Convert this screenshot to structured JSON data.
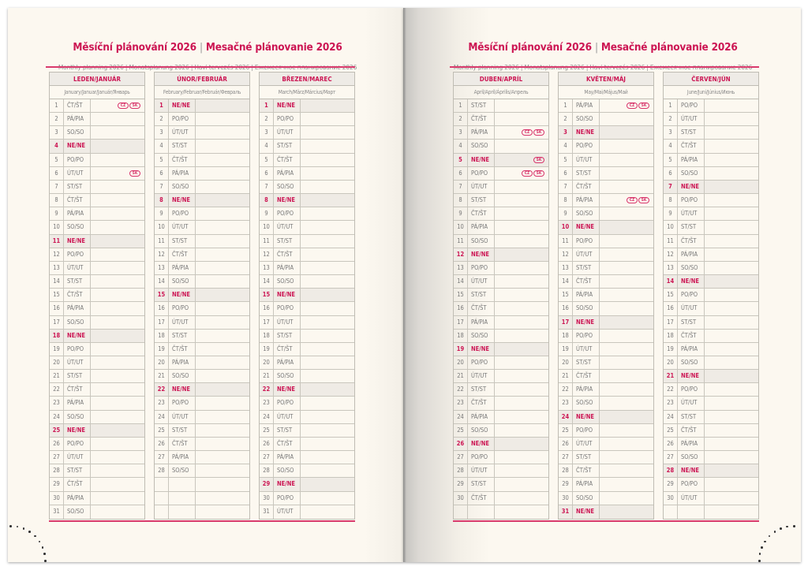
{
  "header": {
    "title_cz": "Měsíční plánování 2026",
    "title_sk": "Mesačné plánovanie 2026",
    "subtitle": "Monthly planning 2026 | Monatsplanung 2026 | Havi tervezés 2026 | Ежемесячное планирование 2026"
  },
  "colors": {
    "accent": "#cc1553",
    "paper": "#fcf8f0",
    "sunday_fill": "#efebe5",
    "grid": "#bfbcb3"
  },
  "holiday_labels": {
    "cz": "CZ",
    "sk": "SK"
  },
  "months": [
    {
      "name": "LEDEN/JANUÁR",
      "sub": "January/Januar/Január/Январь",
      "days": [
        "ČT/ŠT",
        "PÁ/PIA",
        "SO/SO",
        "NE/NE",
        "PO/PO",
        "ÚT/UT",
        "ST/ST",
        "ČT/ŠT",
        "PÁ/PIA",
        "SO/SO",
        "NE/NE",
        "PO/PO",
        "ÚT/UT",
        "ST/ST",
        "ČT/ŠT",
        "PÁ/PIA",
        "SO/SO",
        "NE/NE",
        "PO/PO",
        "ÚT/UT",
        "ST/ST",
        "ČT/ŠT",
        "PÁ/PIA",
        "SO/SO",
        "NE/NE",
        "PO/PO",
        "ÚT/UT",
        "ST/ST",
        "ČT/ŠT",
        "PÁ/PIA",
        "SO/SO"
      ],
      "holidays": {
        "1": [
          "cz",
          "sk"
        ],
        "6": [
          "sk"
        ]
      }
    },
    {
      "name": "ÚNOR/FEBRUÁR",
      "sub": "February/Februar/Február/Февраль",
      "days": [
        "NE/NE",
        "PO/PO",
        "ÚT/UT",
        "ST/ST",
        "ČT/ŠT",
        "PÁ/PIA",
        "SO/SO",
        "NE/NE",
        "PO/PO",
        "ÚT/UT",
        "ST/ST",
        "ČT/ŠT",
        "PÁ/PIA",
        "SO/SO",
        "NE/NE",
        "PO/PO",
        "ÚT/UT",
        "ST/ST",
        "ČT/ŠT",
        "PÁ/PIA",
        "SO/SO",
        "NE/NE",
        "PO/PO",
        "ÚT/UT",
        "ST/ST",
        "ČT/ŠT",
        "PÁ/PIA",
        "SO/SO"
      ],
      "holidays": {}
    },
    {
      "name": "BŘEZEN/MAREC",
      "sub": "March/März/Március/Март",
      "days": [
        "NE/NE",
        "PO/PO",
        "ÚT/UT",
        "ST/ST",
        "ČT/ŠT",
        "PÁ/PIA",
        "SO/SO",
        "NE/NE",
        "PO/PO",
        "ÚT/UT",
        "ST/ST",
        "ČT/ŠT",
        "PÁ/PIA",
        "SO/SO",
        "NE/NE",
        "PO/PO",
        "ÚT/UT",
        "ST/ST",
        "ČT/ŠT",
        "PÁ/PIA",
        "SO/SO",
        "NE/NE",
        "PO/PO",
        "ÚT/UT",
        "ST/ST",
        "ČT/ŠT",
        "PÁ/PIA",
        "SO/SO",
        "NE/NE",
        "PO/PO",
        "ÚT/UT"
      ],
      "holidays": {}
    },
    {
      "name": "DUBEN/APRÍL",
      "sub": "April/April/Április/Апрель",
      "days": [
        "ST/ST",
        "ČT/ŠT",
        "PÁ/PIA",
        "SO/SO",
        "NE/NE",
        "PO/PO",
        "ÚT/UT",
        "ST/ST",
        "ČT/ŠT",
        "PÁ/PIA",
        "SO/SO",
        "NE/NE",
        "PO/PO",
        "ÚT/UT",
        "ST/ST",
        "ČT/ŠT",
        "PÁ/PIA",
        "SO/SO",
        "NE/NE",
        "PO/PO",
        "ÚT/UT",
        "ST/ST",
        "ČT/ŠT",
        "PÁ/PIA",
        "SO/SO",
        "NE/NE",
        "PO/PO",
        "ÚT/UT",
        "ST/ST",
        "ČT/ŠT"
      ],
      "holidays": {
        "3": [
          "cz",
          "sk"
        ],
        "5": [
          "sk"
        ],
        "6": [
          "cz",
          "sk"
        ]
      }
    },
    {
      "name": "KVĚTEN/MÁJ",
      "sub": "May/Mai/Május/Май",
      "days": [
        "PÁ/PIA",
        "SO/SO",
        "NE/NE",
        "PO/PO",
        "ÚT/UT",
        "ST/ST",
        "ČT/ŠT",
        "PÁ/PIA",
        "SO/SO",
        "NE/NE",
        "PO/PO",
        "ÚT/UT",
        "ST/ST",
        "ČT/ŠT",
        "PÁ/PIA",
        "SO/SO",
        "NE/NE",
        "PO/PO",
        "ÚT/UT",
        "ST/ST",
        "ČT/ŠT",
        "PÁ/PIA",
        "SO/SO",
        "NE/NE",
        "PO/PO",
        "ÚT/UT",
        "ST/ST",
        "ČT/ŠT",
        "PÁ/PIA",
        "SO/SO",
        "NE/NE"
      ],
      "holidays": {
        "1": [
          "cz",
          "sk"
        ],
        "8": [
          "cz",
          "sk"
        ]
      }
    },
    {
      "name": "ČERVEN/JÚN",
      "sub": "June/Juni/Június/Июнь",
      "days": [
        "PO/PO",
        "ÚT/UT",
        "ST/ST",
        "ČT/ŠT",
        "PÁ/PIA",
        "SO/SO",
        "NE/NE",
        "PO/PO",
        "ÚT/UT",
        "ST/ST",
        "ČT/ŠT",
        "PÁ/PIA",
        "SO/SO",
        "NE/NE",
        "PO/PO",
        "ÚT/UT",
        "ST/ST",
        "ČT/ŠT",
        "PÁ/PIA",
        "SO/SO",
        "NE/NE",
        "PO/PO",
        "ÚT/UT",
        "ST/ST",
        "ČT/ŠT",
        "PÁ/PIA",
        "SO/SO",
        "NE/NE",
        "PO/PO",
        "ÚT/UT"
      ],
      "holidays": {}
    }
  ]
}
